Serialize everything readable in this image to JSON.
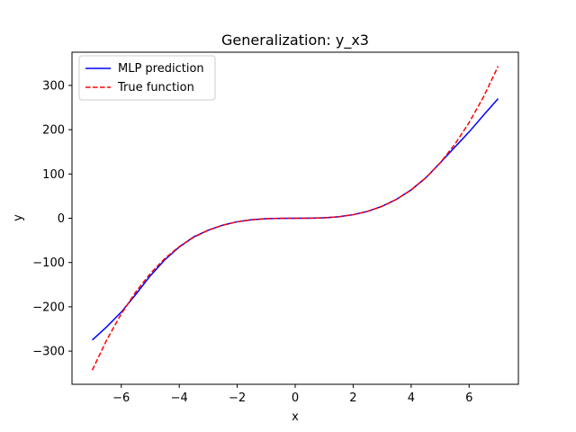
{
  "chart_data": {
    "type": "line",
    "title": "Generalization: y_x3",
    "xlabel": "x",
    "ylabel": "y",
    "xlim": [
      -7.7,
      7.7
    ],
    "ylim": [
      -375,
      375
    ],
    "xticks": [
      -6,
      -4,
      -2,
      0,
      2,
      4,
      6
    ],
    "xtick_labels": [
      "−6",
      "−4",
      "−2",
      "0",
      "2",
      "4",
      "6"
    ],
    "yticks": [
      -300,
      -200,
      -100,
      0,
      100,
      200,
      300
    ],
    "ytick_labels": [
      "−300",
      "−200",
      "−100",
      "0",
      "100",
      "200",
      "300"
    ],
    "grid": false,
    "legend_position": "top-left",
    "series": [
      {
        "name": "MLP prediction",
        "color": "#0000ff",
        "style": "solid",
        "x": [
          -7,
          -6.5,
          -6,
          -5.5,
          -5,
          -4.5,
          -4,
          -3.5,
          -3,
          -2.5,
          -2,
          -1.5,
          -1,
          -0.5,
          0,
          0.5,
          1,
          1.5,
          2,
          2.5,
          3,
          3.5,
          4,
          4.5,
          5,
          5.5,
          6,
          6.5,
          7
        ],
        "y": [
          -275,
          -245,
          -212,
          -172,
          -130,
          -94,
          -65,
          -42,
          -27,
          -15.6,
          -8,
          -3.4,
          -1,
          -0.2,
          0,
          0.2,
          1,
          3.4,
          8,
          15.6,
          27,
          42.9,
          64,
          91,
          125,
          160,
          195,
          233,
          270
        ]
      },
      {
        "name": "True function",
        "color": "#ff0000",
        "style": "dashed",
        "x": [
          -7,
          -6.5,
          -6,
          -5.5,
          -5,
          -4.5,
          -4,
          -3.5,
          -3,
          -2.5,
          -2,
          -1.5,
          -1,
          -0.5,
          0,
          0.5,
          1,
          1.5,
          2,
          2.5,
          3,
          3.5,
          4,
          4.5,
          5,
          5.5,
          6,
          6.5,
          7
        ],
        "y": [
          -343,
          -274.6,
          -216,
          -166.4,
          -125,
          -91.1,
          -64,
          -42.9,
          -27,
          -15.6,
          -8,
          -3.4,
          -1,
          -0.1,
          0,
          0.1,
          1,
          3.4,
          8,
          15.6,
          27,
          42.9,
          64,
          91.1,
          125,
          166.4,
          216,
          274.6,
          343
        ]
      }
    ]
  }
}
